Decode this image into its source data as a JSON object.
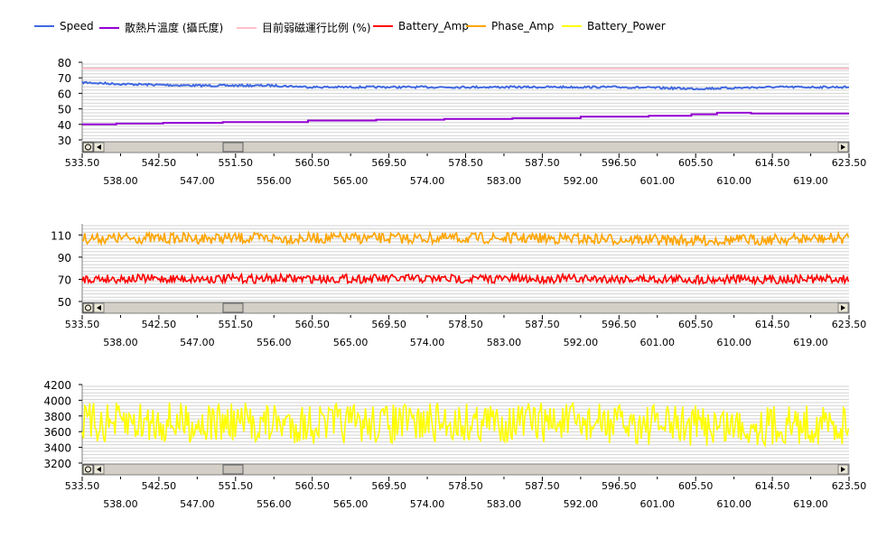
{
  "legend": [
    {
      "name": "Speed",
      "color": "#4169e1"
    },
    {
      "name": "散熱片溫度 (攝氏度)",
      "color": "#9400d3"
    },
    {
      "name": "目前弱磁運行比例 (%)",
      "color": "#ffc0cb"
    },
    {
      "name": "Battery_Amp",
      "color": "#ff0000"
    },
    {
      "name": "Phase_Amp",
      "color": "#ffa500"
    },
    {
      "name": "Battery_Power",
      "color": "#ffff00"
    }
  ],
  "chart_data": [
    {
      "type": "line",
      "xlim": [
        533.5,
        623.5
      ],
      "ylim": [
        30,
        80
      ],
      "y_ticks": [
        "80",
        "70",
        "60",
        "50",
        "40",
        "30"
      ],
      "x_ticks_major": [
        "533.50",
        "542.50",
        "551.50",
        "560.50",
        "569.50",
        "578.50",
        "587.50",
        "596.50",
        "605.50",
        "614.50",
        "623.50"
      ],
      "x_ticks_minor": [
        "538.00",
        "547.00",
        "556.00",
        "565.00",
        "574.00",
        "583.00",
        "592.00",
        "601.00",
        "610.00",
        "619.00"
      ],
      "grid": true,
      "series": [
        {
          "name": "Speed",
          "color": "#4169e1",
          "x": [
            533.5,
            538,
            542.5,
            547,
            551.5,
            556,
            560.5,
            565,
            569.5,
            574,
            578.5,
            583,
            587.5,
            592,
            596.5,
            601,
            605.5,
            610,
            614.5,
            619,
            623.5
          ],
          "y": [
            67,
            66,
            65.5,
            65,
            65,
            65,
            64,
            64,
            64,
            64,
            64,
            64,
            64,
            64,
            64,
            63.5,
            63,
            63.5,
            64,
            64,
            64
          ]
        },
        {
          "name": "散熱片溫度 (攝氏度)",
          "color": "#9400d3",
          "x": [
            533.5,
            537.5,
            537.5,
            543,
            543,
            550,
            550,
            560,
            560,
            568,
            568,
            576,
            576,
            584,
            584,
            592,
            592,
            600,
            600,
            605,
            605,
            608,
            608,
            612,
            612,
            623.5
          ],
          "y": [
            40,
            40,
            40.5,
            40.5,
            41,
            41,
            41.5,
            41.5,
            42.5,
            42.5,
            43,
            43,
            43.5,
            43.5,
            44,
            44,
            45,
            45,
            45.5,
            45.5,
            46.5,
            46.5,
            47.5,
            47.5,
            47,
            47
          ]
        },
        {
          "name": "目前弱磁運行比例 (%)",
          "color": "#ffc0cb",
          "x": [
            533.5,
            623.5
          ],
          "y": [
            76,
            76
          ]
        }
      ]
    },
    {
      "type": "line",
      "xlim": [
        533.5,
        623.5
      ],
      "ylim": [
        50,
        120
      ],
      "y_ticks": [
        "110",
        "90",
        "70",
        "50"
      ],
      "x_ticks_major": [
        "533.50",
        "542.50",
        "551.50",
        "560.50",
        "569.50",
        "578.50",
        "587.50",
        "596.50",
        "605.50",
        "614.50",
        "623.50"
      ],
      "x_ticks_minor": [
        "538.00",
        "547.00",
        "556.00",
        "565.00",
        "574.00",
        "583.00",
        "592.00",
        "601.00",
        "610.00",
        "619.00"
      ],
      "grid": true,
      "series": [
        {
          "name": "Phase_Amp",
          "color": "#ffa500",
          "x": [
            533.5,
            542.5,
            551.5,
            560.5,
            569.5,
            578.5,
            587.5,
            596.5,
            605.5,
            614.5,
            623.5
          ],
          "y": [
            107,
            107,
            107,
            107,
            107,
            107,
            107,
            106,
            105,
            106,
            107
          ],
          "spread": 10
        },
        {
          "name": "Battery_Amp",
          "color": "#ff0000",
          "x": [
            533.5,
            542.5,
            551.5,
            560.5,
            569.5,
            578.5,
            587.5,
            596.5,
            605.5,
            614.5,
            623.5
          ],
          "y": [
            70.5,
            70.5,
            70.5,
            70.5,
            70.5,
            70.5,
            70.5,
            70.5,
            70,
            70,
            70.5
          ],
          "spread": 8
        }
      ]
    },
    {
      "type": "line",
      "xlim": [
        533.5,
        623.5
      ],
      "ylim": [
        3200,
        4200
      ],
      "y_ticks": [
        "4200",
        "4000",
        "3800",
        "3600",
        "3400",
        "3200"
      ],
      "x_ticks_major": [
        "533.50",
        "542.50",
        "551.50",
        "560.50",
        "569.50",
        "578.50",
        "587.50",
        "596.50",
        "605.50",
        "614.50",
        "623.50"
      ],
      "x_ticks_minor": [
        "538.00",
        "547.00",
        "556.00",
        "565.00",
        "574.00",
        "583.00",
        "592.00",
        "601.00",
        "610.00",
        "619.00"
      ],
      "grid": true,
      "series": [
        {
          "name": "Battery_Power",
          "color": "#ffff00",
          "x": [
            533.5,
            542.5,
            551.5,
            560.5,
            569.5,
            578.5,
            587.5,
            596.5,
            605.5,
            614.5,
            623.5
          ],
          "y": [
            3700,
            3720,
            3710,
            3700,
            3700,
            3720,
            3720,
            3700,
            3680,
            3680,
            3700
          ],
          "spread": 520
        }
      ]
    }
  ]
}
